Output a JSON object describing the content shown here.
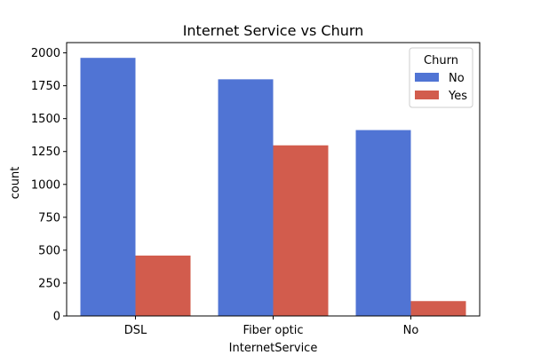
{
  "chart_data": {
    "type": "bar",
    "title": "Internet Service vs Churn",
    "xlabel": "InternetService",
    "ylabel": "count",
    "categories": [
      "DSL",
      "Fiber optic",
      "No"
    ],
    "series": [
      {
        "name": "No",
        "values": [
          1962,
          1799,
          1413
        ],
        "color": "#5074d4"
      },
      {
        "name": "Yes",
        "values": [
          459,
          1297,
          113
        ],
        "color": "#d25c4d"
      }
    ],
    "ylim": [
      0,
      2078
    ],
    "yticks": [
      0,
      250,
      500,
      750,
      1000,
      1250,
      1500,
      1750,
      2000
    ],
    "yticks_labels": [
      "0",
      "250",
      "500",
      "750",
      "1000",
      "1250",
      "1500",
      "1750",
      "2000"
    ],
    "legend": {
      "title": "Churn",
      "position": "top-right"
    },
    "grid": false
  }
}
